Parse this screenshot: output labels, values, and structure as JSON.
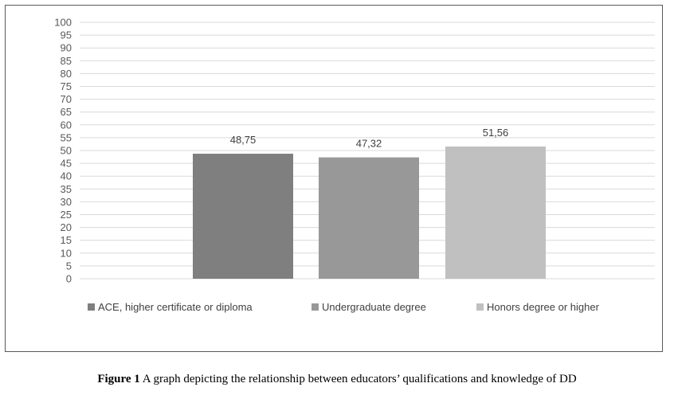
{
  "chart_data": {
    "type": "bar",
    "categories": [
      "ACE, higher certificate or diploma",
      "Undergraduate degree",
      "Honors degree or higher"
    ],
    "values": [
      48.75,
      47.32,
      51.56
    ],
    "value_labels": [
      "48,75",
      "47,32",
      "51,56"
    ],
    "colors": [
      "#7f7f7f",
      "#989898",
      "#c0c0c0"
    ],
    "ylim": [
      0,
      100
    ],
    "y_ticks": [
      0,
      5,
      10,
      15,
      20,
      25,
      30,
      35,
      40,
      45,
      50,
      55,
      60,
      65,
      70,
      75,
      80,
      85,
      90,
      95,
      100
    ],
    "grid": true,
    "legend": "bottom"
  },
  "caption": {
    "label": "Figure 1",
    "text": " A graph depicting the relationship between educators’ qualifications and knowledge of DD"
  }
}
